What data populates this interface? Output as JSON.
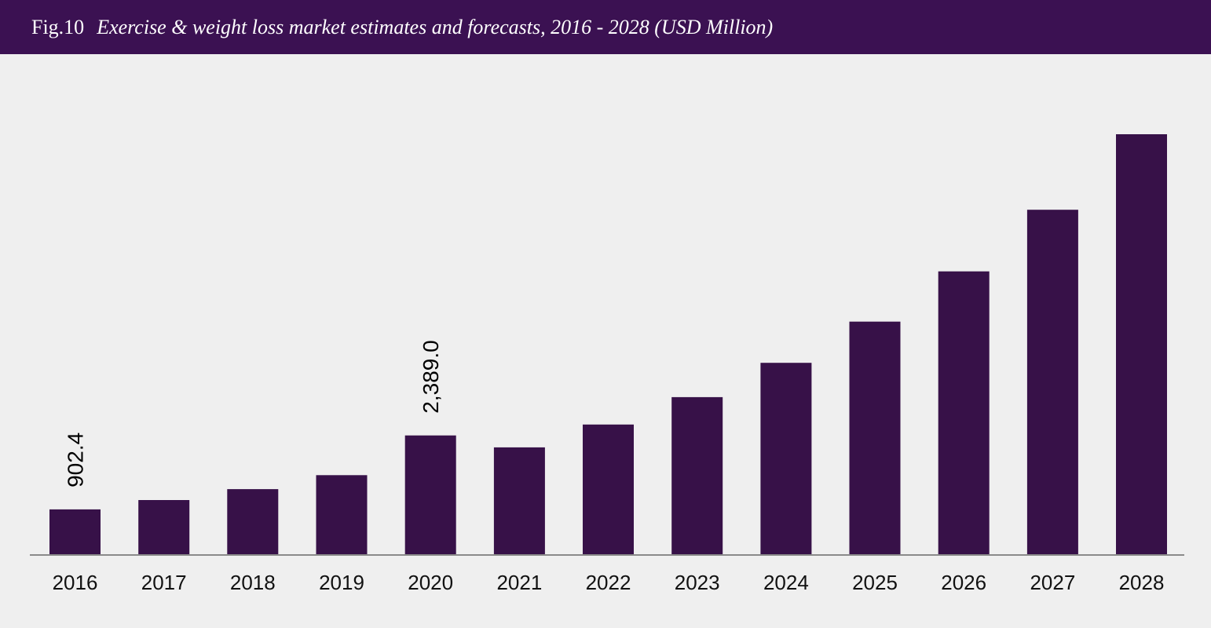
{
  "header": {
    "fig_label": "Fig.10",
    "title": "Exercise & weight loss market estimates and forecasts, 2016 - 2028 (USD Million)"
  },
  "colors": {
    "header_bg": "#3b1152",
    "bar": "#371148",
    "background": "#efefef",
    "axis": "#8a8a8a"
  },
  "chart_data": {
    "type": "bar",
    "title": "Exercise & weight loss market estimates and forecasts, 2016 - 2028 (USD Million)",
    "xlabel": "",
    "ylabel": "",
    "grid": false,
    "ylim": [
      0,
      8500
    ],
    "categories": [
      "2016",
      "2017",
      "2018",
      "2019",
      "2020",
      "2021",
      "2022",
      "2023",
      "2024",
      "2025",
      "2026",
      "2027",
      "2028"
    ],
    "series": [
      {
        "values": [
          902.4,
          1090,
          1310,
          1590,
          2389.0,
          2150,
          2610,
          3160,
          3850,
          4680,
          5690,
          6930,
          8450
        ]
      }
    ],
    "data_labels": [
      {
        "category": "2016",
        "text": "902.4"
      },
      {
        "category": "2020",
        "text": "2,389.0"
      }
    ]
  }
}
